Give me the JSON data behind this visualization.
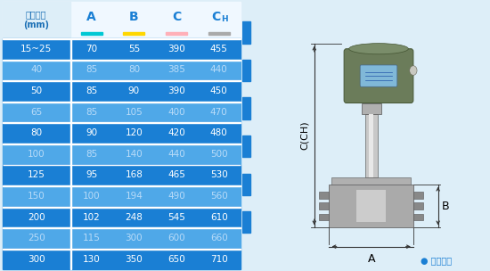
{
  "header": [
    "仪表口径\n(mm)",
    "A",
    "B",
    "C",
    "CH"
  ],
  "rows": [
    [
      "15~25",
      "70",
      "55",
      "390",
      "455"
    ],
    [
      "40",
      "85",
      "80",
      "385",
      "440"
    ],
    [
      "50",
      "85",
      "90",
      "390",
      "450"
    ],
    [
      "65",
      "85",
      "105",
      "400",
      "470"
    ],
    [
      "80",
      "90",
      "120",
      "420",
      "480"
    ],
    [
      "100",
      "85",
      "140",
      "440",
      "500"
    ],
    [
      "125",
      "95",
      "168",
      "465",
      "530"
    ],
    [
      "150",
      "100",
      "194",
      "490",
      "560"
    ],
    [
      "200",
      "102",
      "248",
      "545",
      "610"
    ],
    [
      "250",
      "115",
      "300",
      "600",
      "660"
    ],
    [
      "300",
      "130",
      "350",
      "650",
      "710"
    ]
  ],
  "row_bg_dark": "#1a7fd4",
  "row_bg_light": "#4fa8e8",
  "header_bg": "#e8f4fc",
  "header_first_col_bg": "#e8f4fc",
  "underline_colors": [
    "#00c8d4",
    "#ffd700",
    "#ffb0b8",
    "#aaaaaa"
  ],
  "header_letter_colors": [
    "#1a7fd4",
    "#1a7fd4",
    "#1a7fd4",
    "#1a7fd4"
  ],
  "text_white": "#ffffff",
  "text_light_blue": "#aad4f5",
  "bg_color": "#ddeef8",
  "border_white": "#ffffff",
  "diagram_line_color": "#333333",
  "label_color": "#1a7fd4"
}
